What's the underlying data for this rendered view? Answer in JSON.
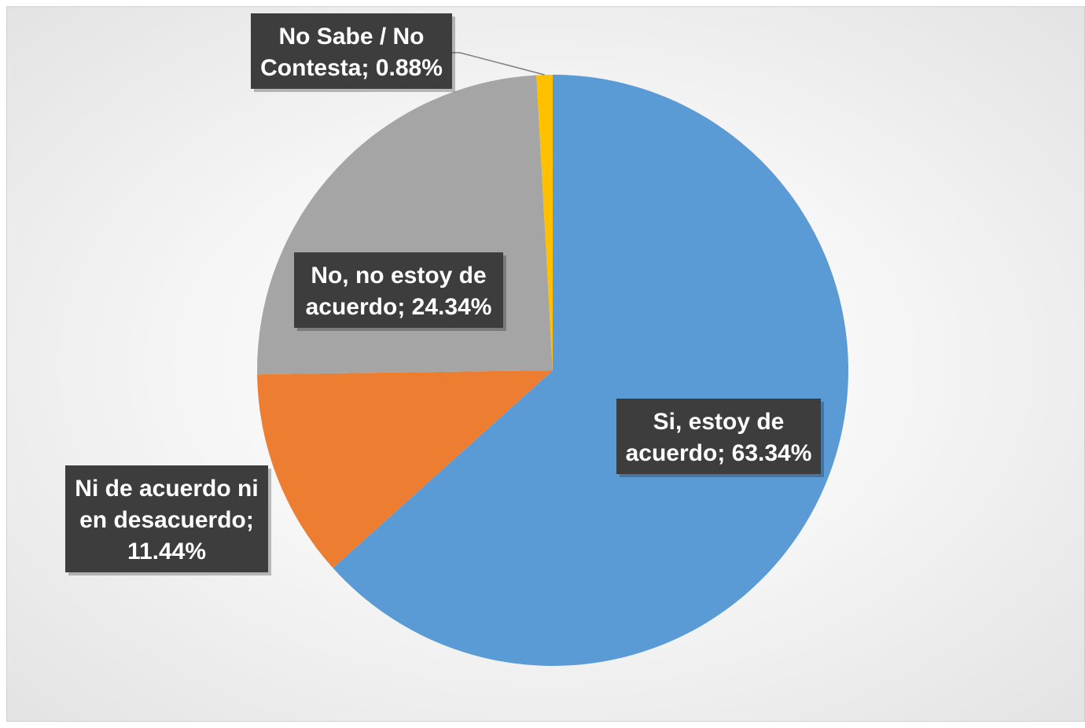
{
  "chart_data": {
    "type": "pie",
    "title": "",
    "slices": [
      {
        "label_lines": [
          "Si, estoy de",
          "acuerdo; 63.34%"
        ],
        "name": "Si, estoy de acuerdo",
        "value": 63.34,
        "color": "#5b9bd5"
      },
      {
        "label_lines": [
          "Ni de acuerdo ni",
          "en desacuerdo;",
          "11.44%"
        ],
        "name": "Ni de acuerdo ni en desacuerdo",
        "value": 11.44,
        "color": "#ed7d31"
      },
      {
        "label_lines": [
          "No, no estoy de",
          "acuerdo; 24.34%"
        ],
        "name": "No, no estoy de acuerdo",
        "value": 24.34,
        "color": "#a5a5a5"
      },
      {
        "label_lines": [
          "No Sabe / No",
          "Contesta; 0.88%"
        ],
        "name": "No Sabe / No Contesta",
        "value": 0.88,
        "color": "#ffc000"
      }
    ],
    "start_angle_deg": 0,
    "direction": "clockwise",
    "legend": "none"
  }
}
